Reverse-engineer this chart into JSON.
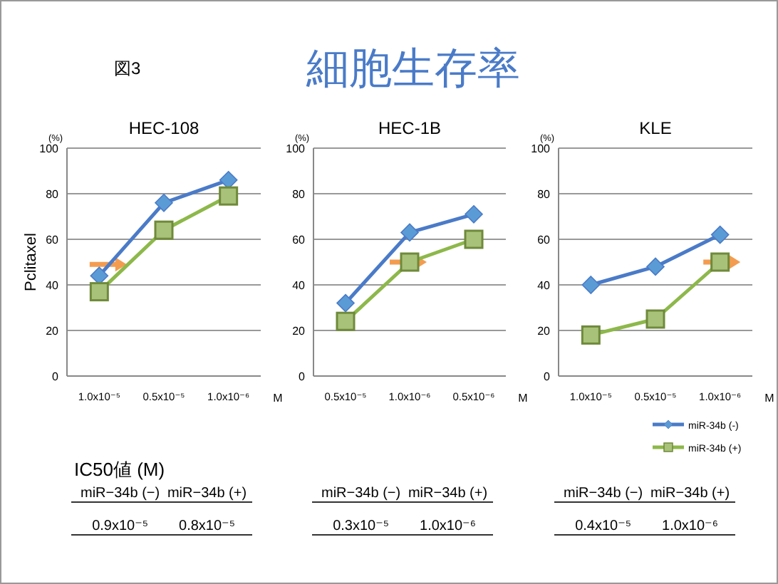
{
  "chart_data": [
    {
      "type": "other",
      "title": "細胞生存率",
      "annotations": [
        "図3"
      ]
    },
    {
      "type": "line",
      "title": "HEC-108",
      "ylabel": "Pclitaxel",
      "xlabel": "M",
      "annotations": [
        "(%)"
      ],
      "categories": [
        "1.0x10⁻⁵",
        "0.5x10⁻⁵",
        "1.0x10⁻⁶"
      ],
      "ylim": [
        0,
        100
      ],
      "yticks": [
        0,
        20,
        40,
        60,
        80,
        100
      ],
      "grid": "y",
      "series": [
        {
          "color": "#4a7bc8",
          "marker": "diamond",
          "values": [
            44,
            76,
            86
          ]
        },
        {
          "color": "#8db84a",
          "marker": "square",
          "values": [
            37,
            64,
            79
          ]
        }
      ]
    },
    {
      "type": "line",
      "title": "HEC-1B",
      "xlabel": "M",
      "annotations": [
        "(%)"
      ],
      "categories": [
        "0.5x10⁻⁵",
        "1.0x10⁻⁶",
        "0.5x10⁻⁶"
      ],
      "ylim": [
        0,
        100
      ],
      "yticks": [
        0,
        20,
        40,
        60,
        80,
        100
      ],
      "grid": "y",
      "series": [
        {
          "color": "#4a7bc8",
          "marker": "diamond",
          "values": [
            32,
            63,
            71
          ]
        },
        {
          "color": "#8db84a",
          "marker": "square",
          "values": [
            24,
            50,
            60
          ]
        }
      ]
    },
    {
      "type": "line",
      "title": "KLE",
      "xlabel": "M",
      "annotations": [
        "(%)"
      ],
      "categories": [
        "1.0x10⁻⁵",
        "0.5x10⁻⁵",
        "1.0x10⁻⁶"
      ],
      "ylim": [
        0,
        100
      ],
      "yticks": [
        0,
        20,
        40,
        60,
        80,
        100
      ],
      "grid": "y",
      "legend": "bottom right",
      "series": [
        {
          "name": "miR-34b (-)",
          "color": "#4a7bc8",
          "marker": "diamond",
          "values": [
            40,
            48,
            62
          ]
        },
        {
          "name": "miR-34b (+)",
          "color": "#8db84a",
          "marker": "square",
          "values": [
            18,
            25,
            50
          ]
        }
      ]
    },
    {
      "type": "other",
      "title": "IC50値 (M)",
      "annotations": [
        "miR−34b (−)",
        "miR−34b (+)",
        "0.9x10⁻⁵",
        "0.8x10⁻⁵",
        "miR−34b (−)",
        "miR−34b (+)",
        "0.3x10⁻⁵",
        "1.0x10⁻⁶",
        "miR−34b (−)",
        "miR−34b (+)",
        "0.4x10⁻⁵",
        "1.0x10⁻⁶"
      ]
    }
  ]
}
